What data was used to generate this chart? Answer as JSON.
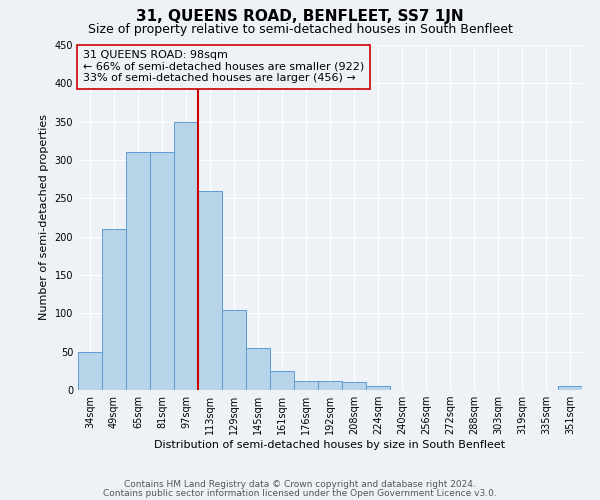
{
  "title": "31, QUEENS ROAD, BENFLEET, SS7 1JN",
  "subtitle": "Size of property relative to semi-detached houses in South Benfleet",
  "xlabel": "Distribution of semi-detached houses by size in South Benfleet",
  "ylabel": "Number of semi-detached properties",
  "categories": [
    "34sqm",
    "49sqm",
    "65sqm",
    "81sqm",
    "97sqm",
    "113sqm",
    "129sqm",
    "145sqm",
    "161sqm",
    "176sqm",
    "192sqm",
    "208sqm",
    "224sqm",
    "240sqm",
    "256sqm",
    "272sqm",
    "288sqm",
    "303sqm",
    "319sqm",
    "335sqm",
    "351sqm"
  ],
  "values": [
    50,
    210,
    310,
    310,
    350,
    260,
    105,
    55,
    25,
    12,
    12,
    10,
    5,
    0,
    0,
    0,
    0,
    0,
    0,
    0,
    5
  ],
  "bar_color": "#b8d4e8",
  "bar_edge_color": "#5b9bd5",
  "property_line_x": 4.5,
  "annotation_text": "31 QUEENS ROAD: 98sqm\n← 66% of semi-detached houses are smaller (922)\n33% of semi-detached houses are larger (456) →",
  "ylim": [
    0,
    450
  ],
  "yticks": [
    0,
    50,
    100,
    150,
    200,
    250,
    300,
    350,
    400,
    450
  ],
  "line_color": "#cc0000",
  "footnote1": "Contains HM Land Registry data © Crown copyright and database right 2024.",
  "footnote2": "Contains public sector information licensed under the Open Government Licence v3.0.",
  "bg_color": "#eef2f7",
  "grid_color": "#ffffff",
  "title_fontsize": 11,
  "subtitle_fontsize": 9,
  "axis_label_fontsize": 8,
  "tick_fontsize": 7,
  "annotation_fontsize": 8,
  "footnote_fontsize": 6.5
}
